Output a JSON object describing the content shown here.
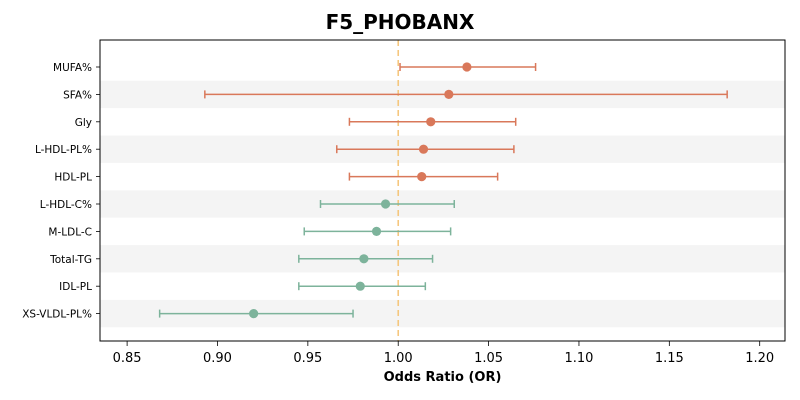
{
  "chart_data": {
    "type": "forest",
    "title": "F5_PHOBANX",
    "xlabel": "Odds Ratio (OR)",
    "ylabel": "",
    "xlim": [
      0.835,
      1.214
    ],
    "xticks": [
      0.85,
      0.9,
      0.95,
      1.0,
      1.05,
      1.1,
      1.15,
      1.2
    ],
    "xtick_labels": [
      "0.85",
      "0.90",
      "0.95",
      "1.00",
      "1.05",
      "1.10",
      "1.15",
      "1.20"
    ],
    "reference_line": 1.0,
    "grid": false,
    "colors": {
      "positive": "#d9785a",
      "negative": "#7db39b",
      "reference": "#f5c77e",
      "band": "#f4f4f4"
    },
    "rows": [
      {
        "label": "MUFA%",
        "or": 1.038,
        "lower": 1.001,
        "upper": 1.076,
        "direction": "positive"
      },
      {
        "label": "SFA%",
        "or": 1.028,
        "lower": 0.893,
        "upper": 1.182,
        "direction": "positive"
      },
      {
        "label": "Gly",
        "or": 1.018,
        "lower": 0.973,
        "upper": 1.065,
        "direction": "positive"
      },
      {
        "label": "L-HDL-PL%",
        "or": 1.014,
        "lower": 0.966,
        "upper": 1.064,
        "direction": "positive"
      },
      {
        "label": "HDL-PL",
        "or": 1.013,
        "lower": 0.973,
        "upper": 1.055,
        "direction": "positive"
      },
      {
        "label": "L-HDL-C%",
        "or": 0.993,
        "lower": 0.957,
        "upper": 1.031,
        "direction": "negative"
      },
      {
        "label": "M-LDL-C",
        "or": 0.988,
        "lower": 0.948,
        "upper": 1.029,
        "direction": "negative"
      },
      {
        "label": "Total-TG",
        "or": 0.981,
        "lower": 0.945,
        "upper": 1.019,
        "direction": "negative"
      },
      {
        "label": "IDL-PL",
        "or": 0.979,
        "lower": 0.945,
        "upper": 1.015,
        "direction": "negative"
      },
      {
        "label": "XS-VLDL-PL%",
        "or": 0.92,
        "lower": 0.868,
        "upper": 0.975,
        "direction": "negative"
      }
    ]
  }
}
